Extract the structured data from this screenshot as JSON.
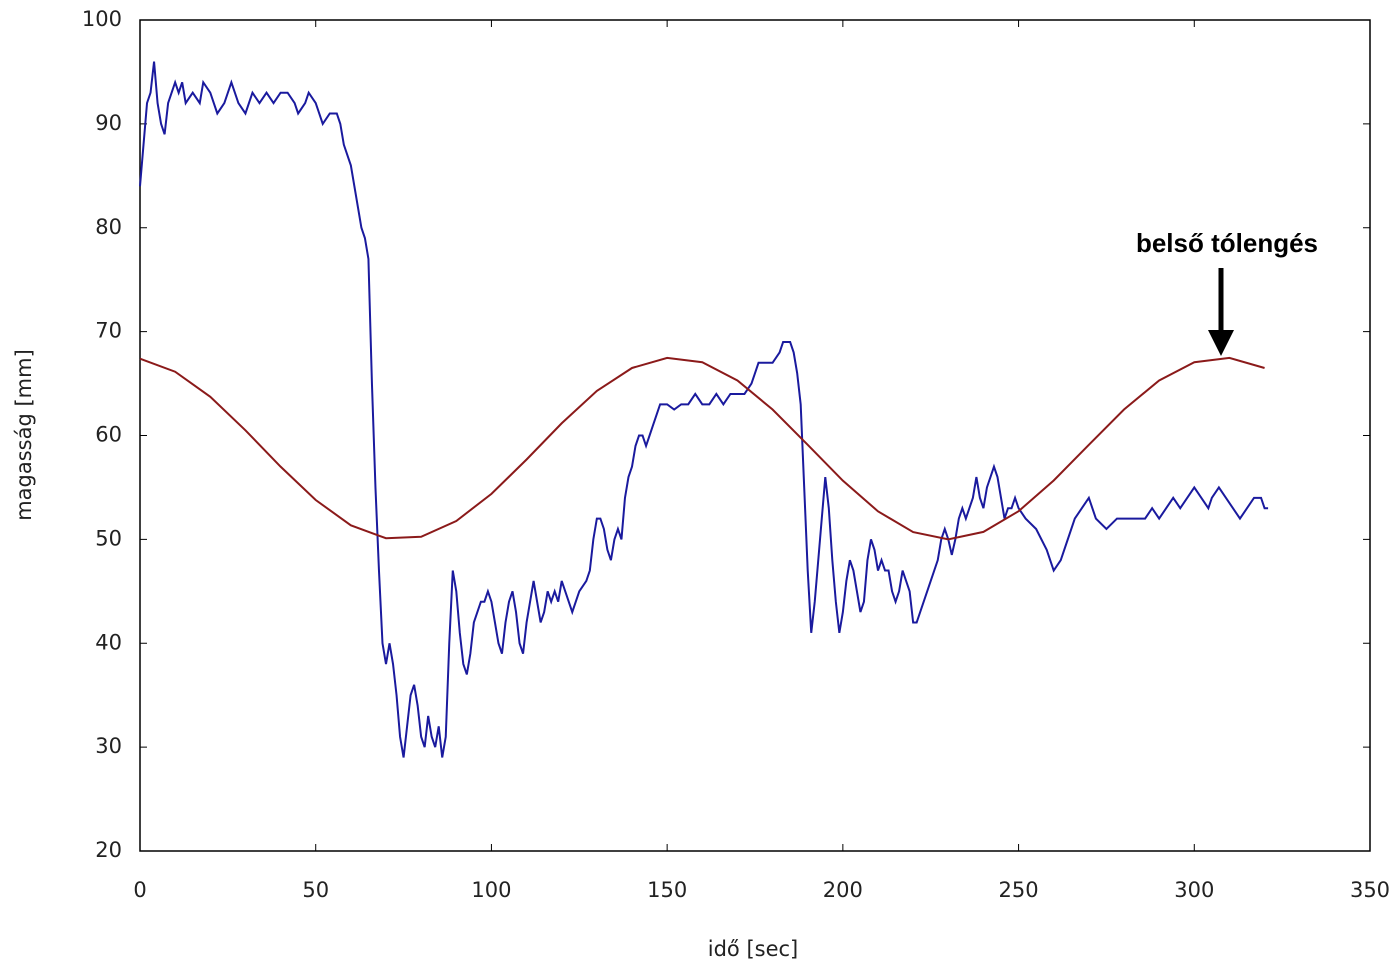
{
  "chart_data": {
    "type": "line",
    "x_label": "idő [sec]",
    "y_label": "magasság [mm]",
    "xlim": [
      0,
      350
    ],
    "ylim": [
      20,
      100
    ],
    "xticks": [
      0,
      50,
      100,
      150,
      200,
      250,
      300,
      350
    ],
    "yticks": [
      20,
      30,
      40,
      50,
      60,
      70,
      80,
      90,
      100
    ],
    "grid": false,
    "annotation": "belső tólengés",
    "series": [
      {
        "color": "#1a1a9e",
        "x": [
          0,
          1,
          2,
          3,
          4,
          5,
          6,
          7,
          8,
          9,
          10,
          11,
          12,
          13,
          15,
          17,
          18,
          20,
          22,
          24,
          26,
          28,
          30,
          32,
          34,
          36,
          38,
          40,
          42,
          44,
          45,
          47,
          48,
          50,
          51,
          52,
          54,
          56,
          57,
          58,
          60,
          61,
          62,
          63,
          64,
          65,
          66,
          67,
          68,
          69,
          70,
          71,
          72,
          73,
          74,
          75,
          76,
          77,
          78,
          79,
          80,
          81,
          82,
          83,
          84,
          85,
          86,
          87,
          88,
          89,
          90,
          91,
          92,
          93,
          94,
          95,
          96,
          97,
          98,
          99,
          100,
          101,
          102,
          103,
          104,
          105,
          106,
          107,
          108,
          109,
          110,
          111,
          112,
          113,
          114,
          115,
          116,
          117,
          118,
          119,
          120,
          121,
          122,
          123,
          125,
          127,
          128,
          129,
          130,
          131,
          132,
          133,
          134,
          135,
          136,
          137,
          138,
          139,
          140,
          141,
          142,
          143,
          144,
          145,
          146,
          147,
          148,
          150,
          152,
          154,
          156,
          158,
          160,
          162,
          164,
          166,
          168,
          170,
          172,
          174,
          175,
          176,
          178,
          180,
          182,
          183,
          185,
          186,
          187,
          188,
          189,
          190,
          191,
          192,
          193,
          194,
          195,
          196,
          197,
          198,
          199,
          200,
          201,
          202,
          203,
          204,
          205,
          206,
          207,
          208,
          209,
          210,
          211,
          212,
          213,
          214,
          215,
          216,
          217,
          218,
          219,
          220,
          221,
          222,
          224,
          226,
          227,
          228,
          229,
          230,
          231,
          232,
          233,
          234,
          235,
          236,
          237,
          238,
          239,
          240,
          241,
          242,
          243,
          244,
          245,
          246,
          247,
          248,
          249,
          250,
          252,
          255,
          258,
          260,
          262,
          264,
          266,
          268,
          270,
          272,
          275,
          278,
          282,
          286,
          288,
          290,
          292,
          294,
          296,
          298,
          300,
          302,
          304,
          305,
          307,
          309,
          311,
          313,
          315,
          317,
          319,
          320,
          321
        ],
        "values": [
          84,
          88,
          92,
          93,
          96,
          92,
          90,
          89,
          92,
          93,
          94,
          93,
          94,
          92,
          93,
          92,
          94,
          93,
          91,
          92,
          94,
          92,
          91,
          93,
          92,
          93,
          92,
          93,
          93,
          92,
          91,
          92,
          93,
          92,
          91,
          90,
          91,
          91,
          90,
          88,
          86,
          84,
          82,
          80,
          79,
          77,
          65,
          55,
          47,
          40,
          38,
          40,
          38,
          35,
          31,
          29,
          32,
          35,
          36,
          34,
          31,
          30,
          33,
          31,
          30,
          32,
          29,
          31,
          40,
          47,
          45,
          41,
          38,
          37,
          39,
          42,
          43,
          44,
          44,
          45,
          44,
          42,
          40,
          39,
          42,
          44,
          45,
          43,
          40,
          39,
          42,
          44,
          46,
          44,
          42,
          43,
          45,
          44,
          45,
          44,
          46,
          45,
          44,
          43,
          45,
          46,
          47,
          50,
          52,
          52,
          51,
          49,
          48,
          50,
          51,
          50,
          54,
          56,
          57,
          59,
          60,
          60,
          59,
          60,
          61,
          62,
          63,
          63,
          62.5,
          63,
          63,
          64,
          63,
          63,
          64,
          63,
          64,
          64,
          64,
          65,
          66,
          67,
          67,
          67,
          68,
          69,
          69,
          68,
          66,
          63,
          55,
          47,
          41,
          44,
          48,
          52,
          56,
          53,
          48,
          44,
          41,
          43,
          46,
          48,
          47,
          45,
          43,
          44,
          48,
          50,
          49,
          47,
          48,
          47,
          47,
          45,
          44,
          45,
          47,
          46,
          45,
          42,
          42,
          43,
          45,
          47,
          48,
          50,
          51,
          50,
          48.5,
          50,
          52,
          53,
          52,
          53,
          54,
          56,
          54,
          53,
          55,
          56,
          57,
          56,
          54,
          52,
          53,
          53,
          54,
          53,
          52,
          51,
          49,
          47,
          48,
          50,
          52,
          53,
          54,
          52,
          51,
          52,
          52,
          52,
          53,
          52,
          53,
          54,
          53,
          54,
          55,
          54,
          53,
          54,
          55,
          54,
          53,
          52,
          53,
          54,
          54,
          53,
          53
        ]
      },
      {
        "color": "#8b1a1a",
        "x": [
          0,
          10,
          20,
          30,
          40,
          50,
          60,
          70,
          80,
          90,
          100,
          110,
          120,
          130,
          140,
          150,
          160,
          170,
          180,
          190,
          200,
          210,
          220,
          230,
          240,
          250,
          260,
          270,
          280,
          290,
          300,
          310,
          320
        ],
        "values": [
          67.39,
          66.14,
          63.73,
          60.5,
          57.0,
          53.79,
          51.35,
          50.11,
          50.25,
          51.77,
          54.38,
          57.69,
          61.18,
          64.29,
          66.5,
          67.47,
          67.05,
          65.3,
          62.5,
          59.1,
          55.65,
          52.7,
          50.7,
          50.0,
          50.72,
          52.71,
          55.67,
          59.1,
          62.5,
          65.3,
          67.05,
          67.47,
          66.5
        ]
      }
    ]
  }
}
